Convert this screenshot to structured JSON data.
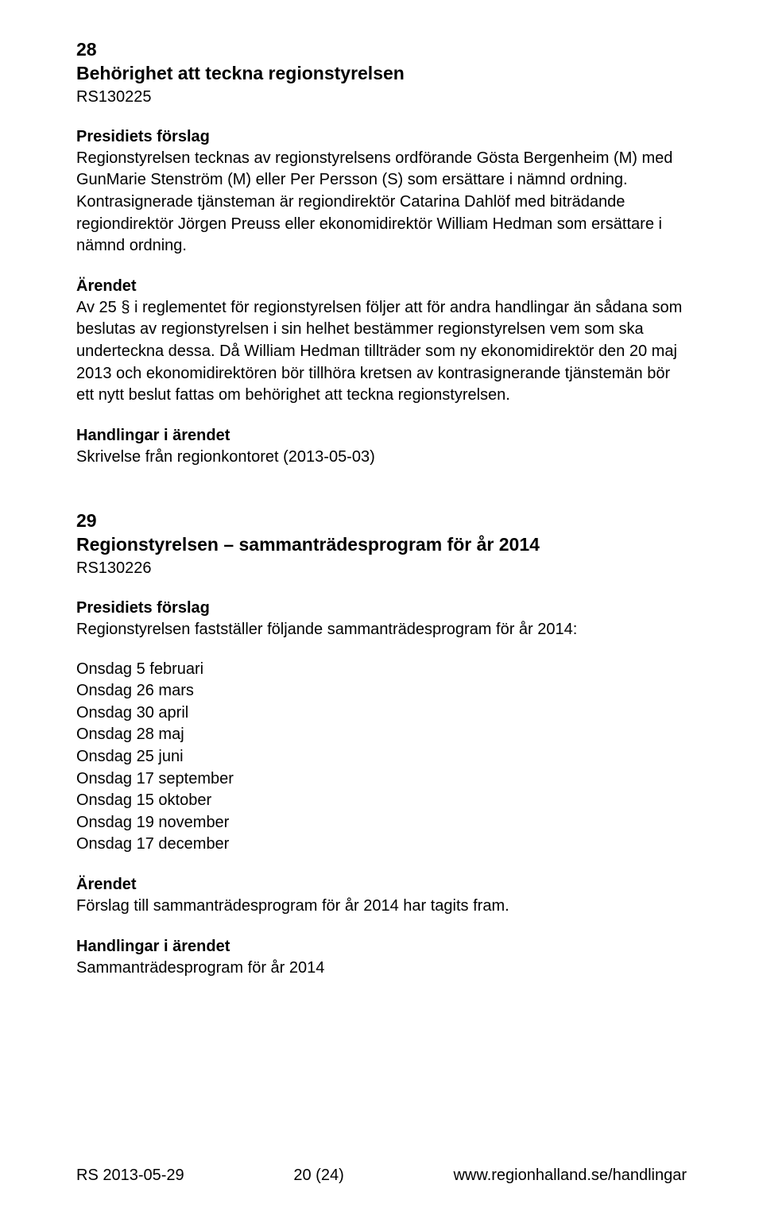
{
  "section28": {
    "number": "28",
    "title": "Behörighet att teckna regionstyrelsen",
    "ref": "RS130225",
    "sub1_heading": "Presidiets förslag",
    "sub1_para": "Regionstyrelsen tecknas av regionstyrelsens ordförande Gösta Bergenheim (M) med GunMarie Stenström (M) eller Per Persson (S) som ersättare i nämnd ordning. Kontrasignerade tjänsteman är regiondirektör Catarina Dahlöf med biträdande regiondirektör Jörgen Preuss eller ekonomidirektör William Hedman som ersättare i nämnd ordning.",
    "sub2_heading": "Ärendet",
    "sub2_para": "Av 25 § i reglementet för regionstyrelsen följer att för andra handlingar än sådana som beslutas av regionstyrelsen i sin helhet bestämmer regionstyrelsen vem som ska underteckna dessa. Då William Hedman tillträder som ny ekonomidirektör den 20 maj 2013 och ekonomidirektören bör tillhöra kretsen av kontrasignerande tjänstemän bör ett nytt beslut fattas om behörighet att teckna regionstyrelsen.",
    "sub3_heading": "Handlingar i ärendet",
    "sub3_para": "Skrivelse från regionkontoret (2013-05-03)"
  },
  "section29": {
    "number": "29",
    "title": "Regionstyrelsen – sammanträdesprogram för år 2014",
    "ref": "RS130226",
    "sub1_heading": "Presidiets förslag",
    "sub1_para": "Regionstyrelsen fastställer följande sammanträdesprogram för år 2014:",
    "dates": [
      "Onsdag 5 februari",
      "Onsdag 26 mars",
      "Onsdag 30 april",
      "Onsdag 28 maj",
      "Onsdag 25 juni",
      "Onsdag 17 september",
      "Onsdag 15 oktober",
      "Onsdag 19 november",
      "Onsdag 17 december"
    ],
    "sub2_heading": "Ärendet",
    "sub2_para": "Förslag till sammanträdesprogram för år 2014 har tagits fram.",
    "sub3_heading": "Handlingar i ärendet",
    "sub3_para": "Sammanträdesprogram för år 2014"
  },
  "footer": {
    "left": "RS 2013-05-29",
    "center": "20 (24)",
    "right": "www.regionhalland.se/handlingar"
  }
}
